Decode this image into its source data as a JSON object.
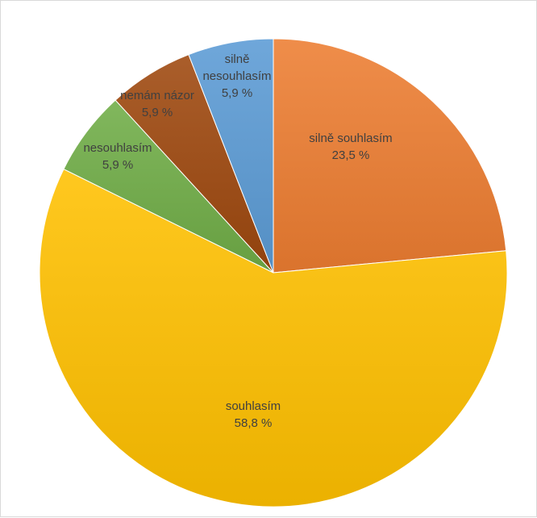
{
  "chart_data": {
    "type": "pie",
    "title": "",
    "start_angle_deg": 0,
    "direction": "clockwise",
    "slices": [
      {
        "label": "silně souhlasím",
        "value": 23.5,
        "value_label": "23,5 %",
        "color": "#ED7D31"
      },
      {
        "label": "souhlasím",
        "value": 58.8,
        "value_label": "58,8 %",
        "color": "#FFC000"
      },
      {
        "label": "nesouhlasím",
        "value": 5.9,
        "value_label": "5,9 %",
        "color": "#70AD47"
      },
      {
        "label": "nemám názor",
        "value": 5.9,
        "value_label": "5,9 %",
        "color": "#9E480E"
      },
      {
        "label": "silně nesouhlasím",
        "value": 5.9,
        "value_label": "5,9 %",
        "color": "#5B9BD5"
      }
    ]
  }
}
